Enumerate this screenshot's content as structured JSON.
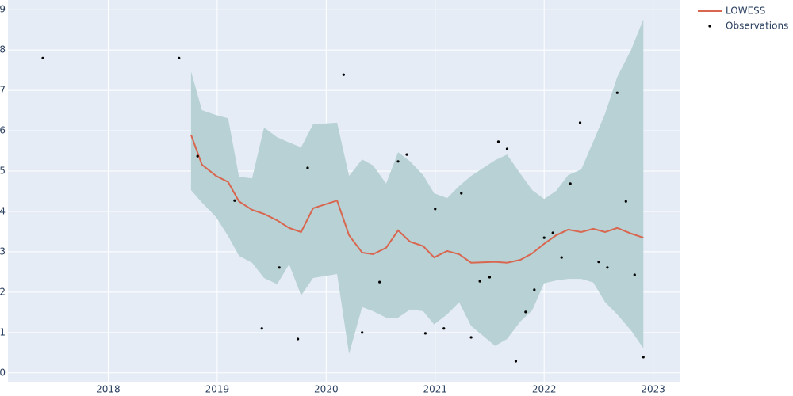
{
  "chart_data": {
    "type": "lowess",
    "xlim": [
      2017.08,
      2023.25
    ],
    "xticks": [
      2018,
      2019,
      2020,
      2021,
      2022,
      2023
    ],
    "ylim": [
      -0.22,
      9.24
    ],
    "yticks": [
      0,
      1,
      2,
      3,
      4,
      5,
      6,
      7,
      8,
      9
    ],
    "grid": true,
    "legend": "top-right",
    "band": {
      "color": "#b7d1d4",
      "x": [
        2018.76,
        2018.86,
        2018.99,
        2019.1,
        2019.2,
        2019.32,
        2019.43,
        2019.55,
        2019.66,
        2019.77,
        2019.88,
        2020.1,
        2020.21,
        2020.33,
        2020.43,
        2020.55,
        2020.66,
        2020.77,
        2020.89,
        2020.99,
        2021.11,
        2021.22,
        2021.33,
        2021.55,
        2021.66,
        2021.78,
        2021.89,
        2022.0,
        2022.11,
        2022.22,
        2022.34,
        2022.45,
        2022.56,
        2022.67,
        2022.8,
        2022.91
      ],
      "upper": [
        7.47,
        6.51,
        6.39,
        6.31,
        4.86,
        4.82,
        6.08,
        5.84,
        5.71,
        5.59,
        6.16,
        6.2,
        4.88,
        5.29,
        5.14,
        4.69,
        5.47,
        5.24,
        4.9,
        4.45,
        4.33,
        4.63,
        4.88,
        5.27,
        5.41,
        4.94,
        4.53,
        4.31,
        4.51,
        4.9,
        5.04,
        5.73,
        6.43,
        7.33,
        8.02,
        8.76
      ],
      "lower": [
        4.53,
        4.22,
        3.86,
        3.39,
        2.9,
        2.73,
        2.35,
        2.2,
        2.69,
        1.92,
        2.35,
        2.45,
        0.47,
        1.63,
        1.53,
        1.37,
        1.37,
        1.57,
        1.53,
        1.2,
        1.45,
        1.75,
        1.16,
        0.67,
        0.84,
        1.27,
        1.55,
        2.22,
        2.29,
        2.33,
        2.33,
        2.24,
        1.75,
        1.45,
        1.04,
        0.61
      ]
    },
    "series": [
      {
        "name": "LOWESS",
        "kind": "line",
        "color": "#d9664f",
        "x": [
          2018.76,
          2018.86,
          2018.99,
          2019.1,
          2019.2,
          2019.32,
          2019.43,
          2019.55,
          2019.66,
          2019.77,
          2019.88,
          2020.1,
          2020.21,
          2020.33,
          2020.43,
          2020.55,
          2020.66,
          2020.77,
          2020.89,
          2020.99,
          2021.11,
          2021.22,
          2021.33,
          2021.55,
          2021.66,
          2021.78,
          2021.89,
          2022.0,
          2022.11,
          2022.22,
          2022.34,
          2022.45,
          2022.56,
          2022.67,
          2022.8,
          2022.91
        ],
        "values": [
          5.9,
          5.16,
          4.88,
          4.73,
          4.25,
          4.04,
          3.94,
          3.78,
          3.59,
          3.49,
          4.08,
          4.27,
          3.41,
          2.98,
          2.94,
          3.1,
          3.53,
          3.25,
          3.14,
          2.86,
          3.02,
          2.94,
          2.73,
          2.75,
          2.73,
          2.8,
          2.96,
          3.2,
          3.41,
          3.55,
          3.49,
          3.57,
          3.49,
          3.59,
          3.45,
          3.35
        ]
      },
      {
        "name": "Observations",
        "kind": "points",
        "color": "#000000",
        "x": [
          2017.4,
          2018.65,
          2018.82,
          2019.16,
          2019.41,
          2019.57,
          2019.74,
          2019.83,
          2020.16,
          2020.33,
          2020.49,
          2020.66,
          2020.74,
          2020.91,
          2021.0,
          2021.08,
          2021.24,
          2021.33,
          2021.41,
          2021.5,
          2021.58,
          2021.66,
          2021.74,
          2021.83,
          2021.91,
          2022.0,
          2022.08,
          2022.16,
          2022.24,
          2022.33,
          2022.5,
          2022.58,
          2022.67,
          2022.75,
          2022.83,
          2022.91
        ],
        "values": [
          7.8,
          7.8,
          5.37,
          4.27,
          1.1,
          2.61,
          0.84,
          5.08,
          7.39,
          1.0,
          2.25,
          5.24,
          5.41,
          0.98,
          4.06,
          1.1,
          4.45,
          0.88,
          2.27,
          2.37,
          5.73,
          5.55,
          0.29,
          1.51,
          2.06,
          3.35,
          3.47,
          2.86,
          4.69,
          6.2,
          2.75,
          2.61,
          6.94,
          4.25,
          2.43,
          0.39
        ]
      }
    ]
  }
}
